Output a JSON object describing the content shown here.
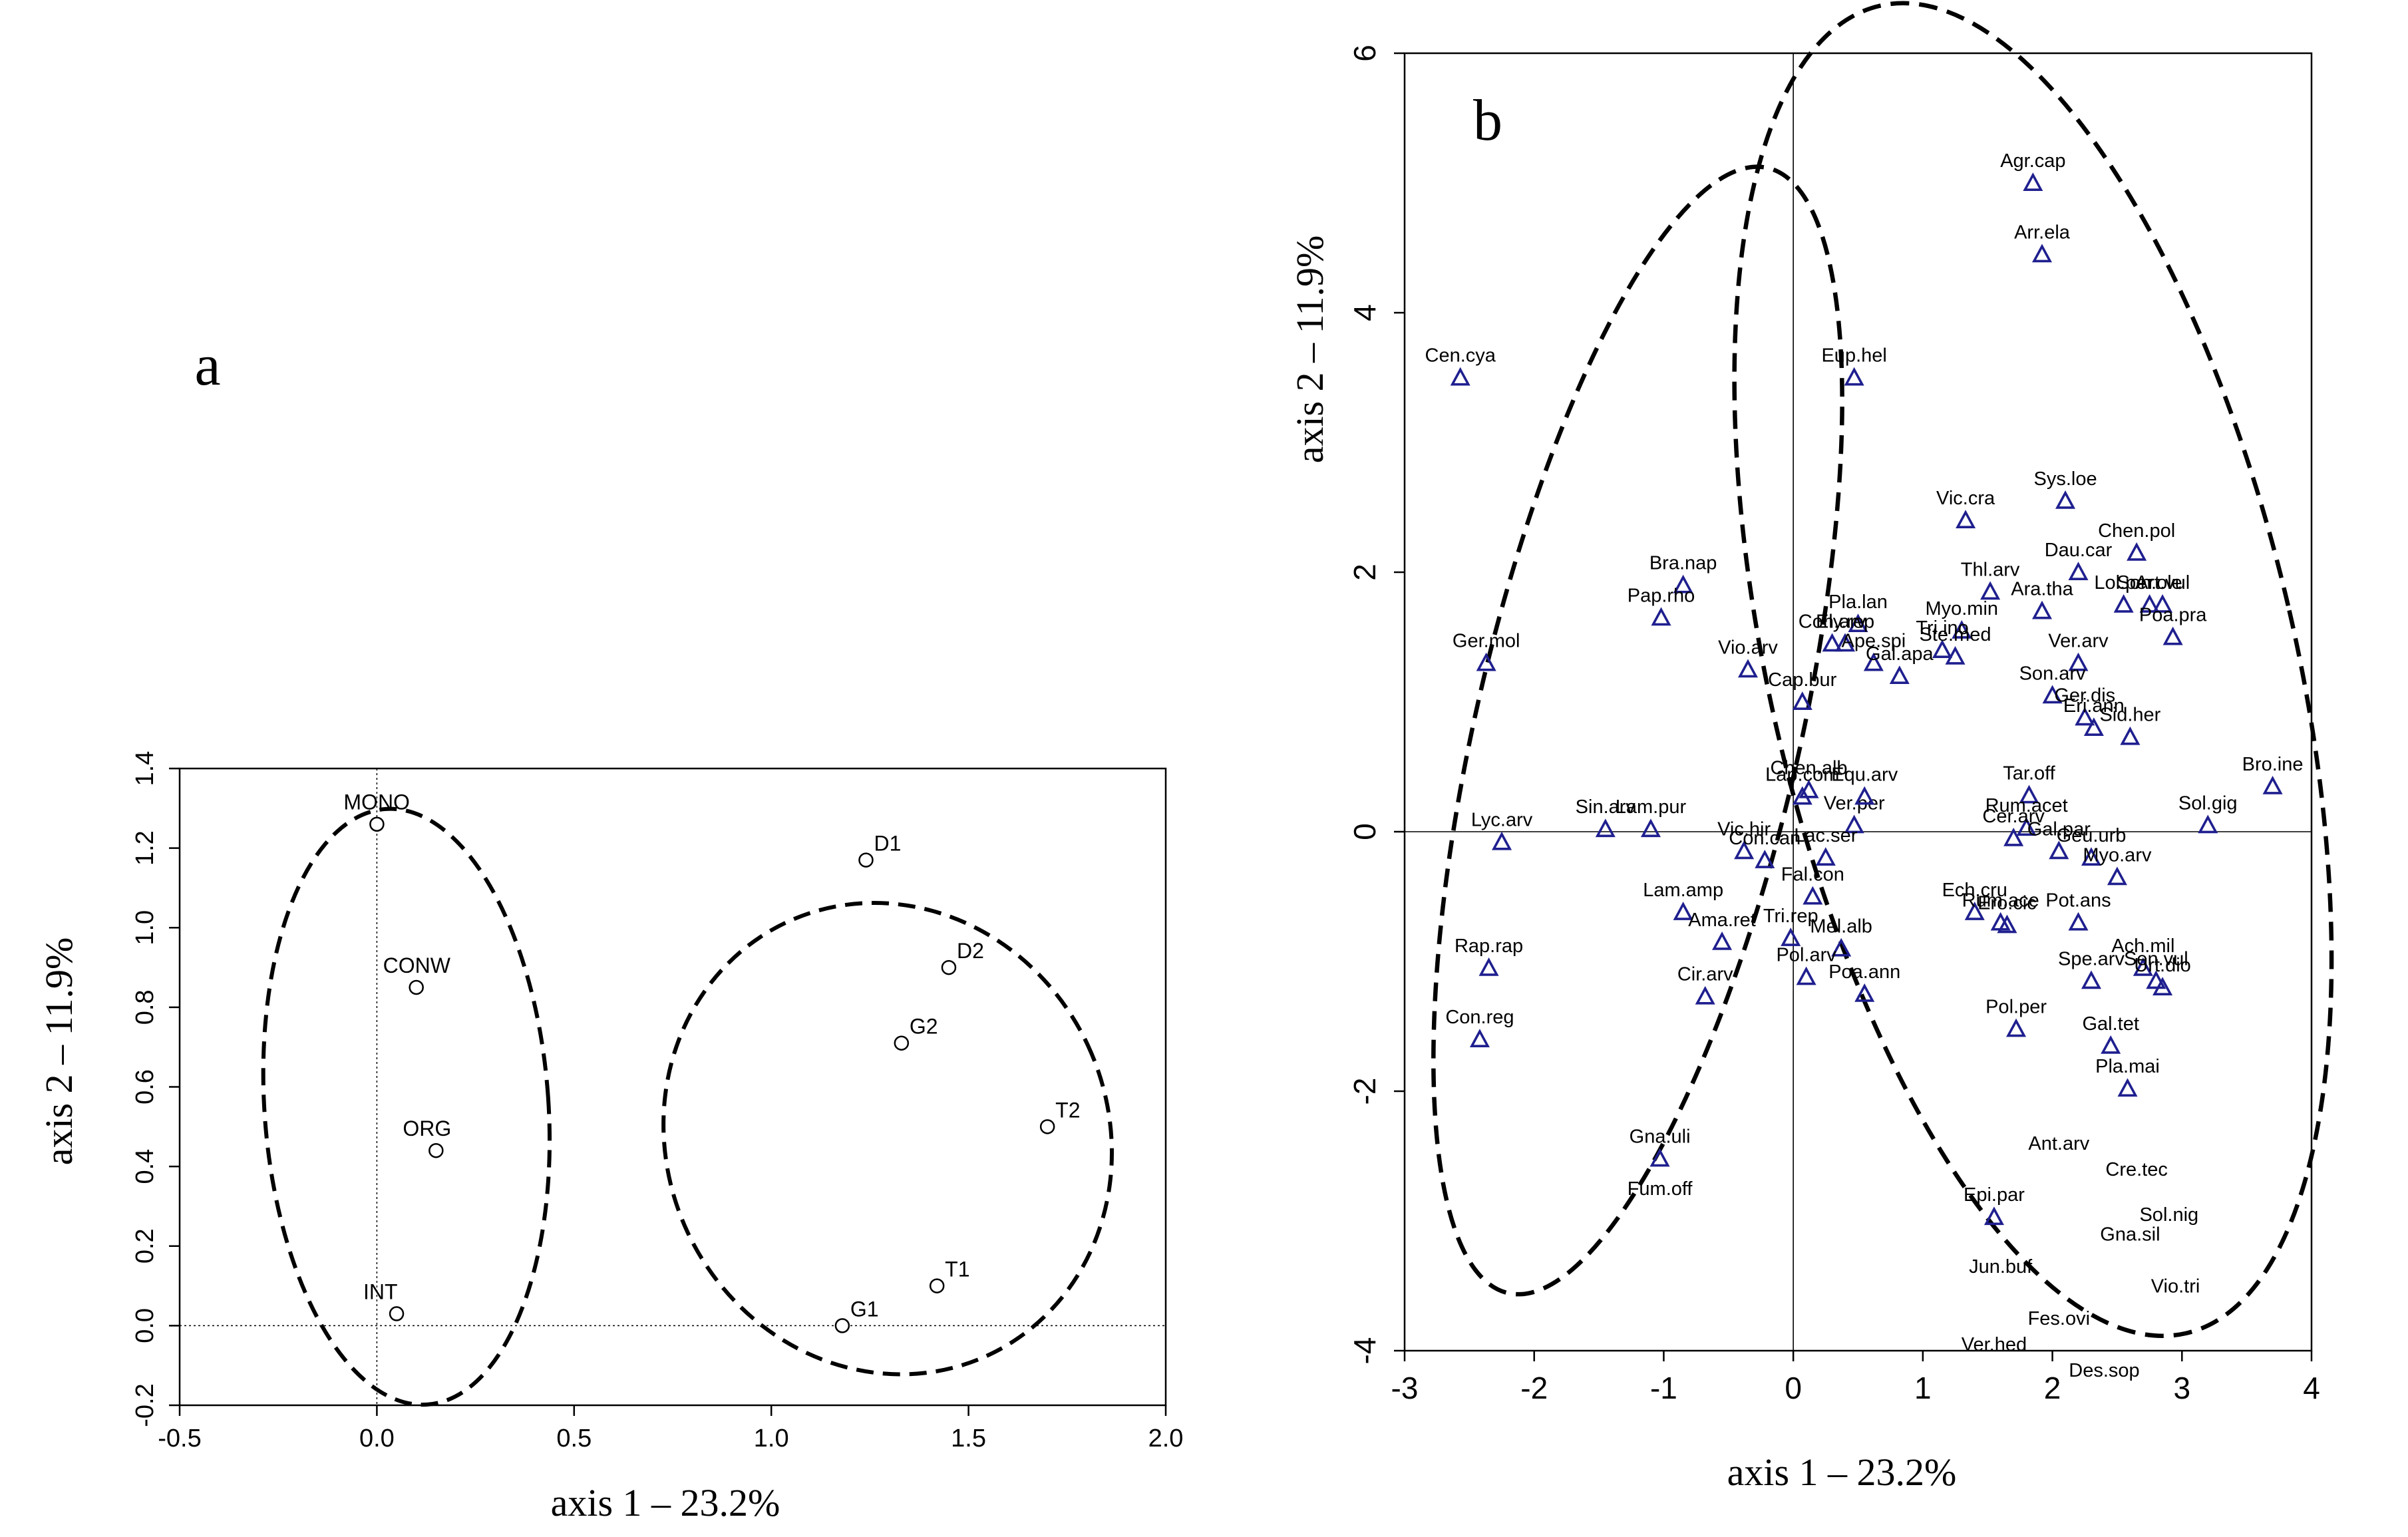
{
  "chart_data": [
    {
      "panel_label": "a",
      "type": "scatter",
      "xlabel": "axis 1 – 23.2%",
      "ylabel": "axis 2 – 11.9%",
      "xlim": [
        -0.5,
        2.0
      ],
      "ylim": [
        -0.2,
        1.4
      ],
      "xticks": [
        "-0.5",
        "0.0",
        "0.5",
        "1.0",
        "1.5",
        "2.0"
      ],
      "yticks": [
        "-0.2",
        "0.0",
        "0.2",
        "0.4",
        "0.6",
        "0.8",
        "1.0",
        "1.2",
        "1.4"
      ],
      "points": [
        {
          "label": "MONO",
          "x": 0.0,
          "y": 1.26
        },
        {
          "label": "CONW",
          "x": 0.1,
          "y": 0.85
        },
        {
          "label": "ORG",
          "x": 0.15,
          "y": 0.44
        },
        {
          "label": "INT",
          "x": 0.05,
          "y": 0.03
        },
        {
          "label": "D1",
          "x": 1.24,
          "y": 1.17
        },
        {
          "label": "D2",
          "x": 1.45,
          "y": 0.9
        },
        {
          "label": "G2",
          "x": 1.33,
          "y": 0.71
        },
        {
          "label": "T2",
          "x": 1.7,
          "y": 0.5
        },
        {
          "label": "T1",
          "x": 1.42,
          "y": 0.1
        },
        {
          "label": "G1",
          "x": 1.18,
          "y": 0.0
        }
      ],
      "ellipses": [
        {
          "cx": 0.075,
          "cy": 0.55,
          "rx": 0.36,
          "ry": 0.75,
          "angle": -4
        },
        {
          "cx": 1.295,
          "cy": 0.47,
          "rx": 0.56,
          "ry": 0.6,
          "angle": -25
        }
      ]
    },
    {
      "panel_label": "b",
      "type": "scatter",
      "xlabel": "axis 1 – 23.2%",
      "ylabel": "axis 2 – 11.9%",
      "xlim": [
        -3,
        4
      ],
      "ylim": [
        -4,
        6
      ],
      "xticks": [
        "-3",
        "-2",
        "-1",
        "0",
        "1",
        "2",
        "3",
        "4"
      ],
      "yticks": [
        "-4",
        "-2",
        "0",
        "2",
        "4",
        "6"
      ],
      "point_color": "#1f1f8f",
      "points": [
        {
          "label": "Agr.cap",
          "x": 1.85,
          "y": 5.0
        },
        {
          "label": "Arr.ela",
          "x": 1.92,
          "y": 4.45
        },
        {
          "label": "Cen.cya",
          "x": -2.57,
          "y": 3.5
        },
        {
          "label": "Eup.hel",
          "x": 0.47,
          "y": 3.5
        },
        {
          "label": "Vic.cra",
          "x": 1.33,
          "y": 2.4
        },
        {
          "label": "Sys.loe",
          "x": 2.1,
          "y": 2.55
        },
        {
          "label": "Chen.pol",
          "x": 2.65,
          "y": 2.15
        },
        {
          "label": "Dau.car",
          "x": 2.2,
          "y": 2.0
        },
        {
          "label": "Lol.per",
          "x": 2.55,
          "y": 1.75
        },
        {
          "label": "Son.ole",
          "x": 2.75,
          "y": 1.75
        },
        {
          "label": "Art.vul",
          "x": 2.85,
          "y": 1.75
        },
        {
          "label": "Thl.arv",
          "x": 1.52,
          "y": 1.85
        },
        {
          "label": "Ara.tha",
          "x": 1.92,
          "y": 1.7
        },
        {
          "label": "Poa.pra",
          "x": 2.93,
          "y": 1.5
        },
        {
          "label": "Ver.arv",
          "x": 2.2,
          "y": 1.3
        },
        {
          "label": "Pla.lan",
          "x": 0.5,
          "y": 1.6
        },
        {
          "label": "Bra.nap",
          "x": -0.85,
          "y": 1.9
        },
        {
          "label": "Con.arv",
          "x": 0.3,
          "y": 1.45
        },
        {
          "label": "Ely.rep",
          "x": 0.4,
          "y": 1.45
        },
        {
          "label": "Myo.min",
          "x": 1.3,
          "y": 1.55
        },
        {
          "label": "Pap.rho",
          "x": -1.02,
          "y": 1.65
        },
        {
          "label": "Vio.arv",
          "x": -0.35,
          "y": 1.25
        },
        {
          "label": "Son.arv",
          "x": 2.0,
          "y": 1.05
        },
        {
          "label": "Ger.dis",
          "x": 2.25,
          "y": 0.88
        },
        {
          "label": "Eri.ann",
          "x": 2.32,
          "y": 0.8
        },
        {
          "label": "Sid.her",
          "x": 2.6,
          "y": 0.73
        },
        {
          "label": "Ger.mol",
          "x": -2.37,
          "y": 1.3
        },
        {
          "label": "Ape.spi",
          "x": 0.62,
          "y": 1.3
        },
        {
          "label": "Gal.apa",
          "x": 0.82,
          "y": 1.2
        },
        {
          "label": "Tri.ino",
          "x": 1.15,
          "y": 1.4
        },
        {
          "label": "Ste.med",
          "x": 1.25,
          "y": 1.35
        },
        {
          "label": "Cap.bur",
          "x": 0.07,
          "y": 1.0
        },
        {
          "label": "Bro.ine",
          "x": 3.7,
          "y": 0.35
        },
        {
          "label": "Sol.gig",
          "x": 3.2,
          "y": 0.05
        },
        {
          "label": "Lap.com",
          "x": 0.07,
          "y": 0.27
        },
        {
          "label": "Chen.alb",
          "x": 0.12,
          "y": 0.32
        },
        {
          "label": "Tar.off",
          "x": 1.82,
          "y": 0.28
        },
        {
          "label": "Rum.acet",
          "x": 1.8,
          "y": 0.03
        },
        {
          "label": "Sin.arv",
          "x": -1.45,
          "y": 0.02
        },
        {
          "label": "Lam.pur",
          "x": -1.1,
          "y": 0.02
        },
        {
          "label": "Ver.per",
          "x": 0.47,
          "y": 0.05
        },
        {
          "label": "Equ.arv",
          "x": 0.55,
          "y": 0.27
        },
        {
          "label": "Cer.arv",
          "x": 1.7,
          "y": -0.05
        },
        {
          "label": "Gal.par",
          "x": 2.05,
          "y": -0.15
        },
        {
          "label": "Geu.urb",
          "x": 2.3,
          "y": -0.2
        },
        {
          "label": "Lyc.arv",
          "x": -2.25,
          "y": -0.08
        },
        {
          "label": "Vic.hir",
          "x": -0.38,
          "y": -0.15
        },
        {
          "label": "Con.can",
          "x": -0.22,
          "y": -0.22
        },
        {
          "label": "Lac.ser",
          "x": 0.25,
          "y": -0.2
        },
        {
          "label": "Myo.arv",
          "x": 2.5,
          "y": -0.35
        },
        {
          "label": "Fal.con",
          "x": 0.15,
          "y": -0.5
        },
        {
          "label": "Ech.cru",
          "x": 1.4,
          "y": -0.62
        },
        {
          "label": "Rum.ace",
          "x": 1.6,
          "y": -0.7
        },
        {
          "label": "Lam.amp",
          "x": -0.85,
          "y": -0.62
        },
        {
          "label": "Ero.cic",
          "x": 1.65,
          "y": -0.72
        },
        {
          "label": "Pot.ans",
          "x": 2.2,
          "y": -0.7
        },
        {
          "label": "Ama.ret",
          "x": -0.55,
          "y": -0.85
        },
        {
          "label": "Tri.rep",
          "x": -0.02,
          "y": -0.82
        },
        {
          "label": "Mel.alb",
          "x": 0.37,
          "y": -0.9
        },
        {
          "label": "Ach.mil",
          "x": 2.7,
          "y": -1.05
        },
        {
          "label": "Sen.vul",
          "x": 2.8,
          "y": -1.15
        },
        {
          "label": "Urt.dio",
          "x": 2.85,
          "y": -1.2
        },
        {
          "label": "Rap.rap",
          "x": -2.35,
          "y": -1.05
        },
        {
          "label": "Cir.arv",
          "x": -0.68,
          "y": -1.27
        },
        {
          "label": "Pol.arv",
          "x": 0.1,
          "y": -1.12
        },
        {
          "label": "Poa.ann",
          "x": 0.55,
          "y": -1.25
        },
        {
          "label": "Spe.arv",
          "x": 2.3,
          "y": -1.15
        },
        {
          "label": "Pol.per",
          "x": 1.72,
          "y": -1.52
        },
        {
          "label": "Gal.tet",
          "x": 2.45,
          "y": -1.65
        },
        {
          "label": "Con.reg",
          "x": -2.42,
          "y": -1.6
        },
        {
          "label": "Pla.mai",
          "x": 2.58,
          "y": -1.98
        },
        {
          "label": "Epi.par",
          "x": 1.55,
          "y": -2.97
        },
        {
          "label": "Gna.uli",
          "x": -1.03,
          "y": -2.52
        }
      ],
      "text_only_labels": [
        "Ant.arv",
        "Cre.tec",
        "Sol.nig",
        "Gna.sil",
        "Vio.tri",
        "Jun.buf",
        "Fes.ovi",
        "Ver.hed",
        "Des.sop",
        "Fum.off"
      ],
      "ellipses": [
        {
          "cx": -1.2,
          "cy": 0.78,
          "rx": 1.25,
          "ry": 4.45,
          "angle": 13
        },
        {
          "cx": 1.85,
          "cy": 1.25,
          "rx": 2.03,
          "ry": 5.25,
          "angle": -13
        }
      ]
    }
  ]
}
